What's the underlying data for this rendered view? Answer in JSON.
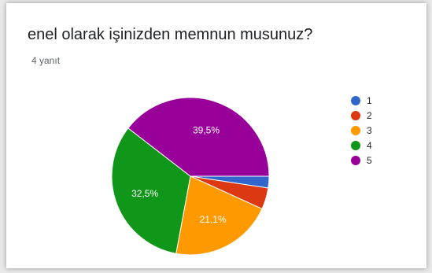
{
  "header": {
    "title": "enel olarak işinizden memnun musunuz?",
    "responses": "4 yanıt"
  },
  "chart_data": {
    "type": "pie",
    "categories": [
      "1",
      "2",
      "3",
      "4",
      "5"
    ],
    "values": [
      2.4,
      4.4,
      21.1,
      32.5,
      39.5
    ],
    "colors": [
      "#3366cc",
      "#dc3912",
      "#ff9900",
      "#109618",
      "#990099"
    ],
    "data_labels": [
      "",
      "",
      "21,1%",
      "32,5%",
      "39,5%"
    ],
    "legend": {
      "placement": "right",
      "entries": [
        "1",
        "2",
        "3",
        "4",
        "5"
      ]
    }
  }
}
